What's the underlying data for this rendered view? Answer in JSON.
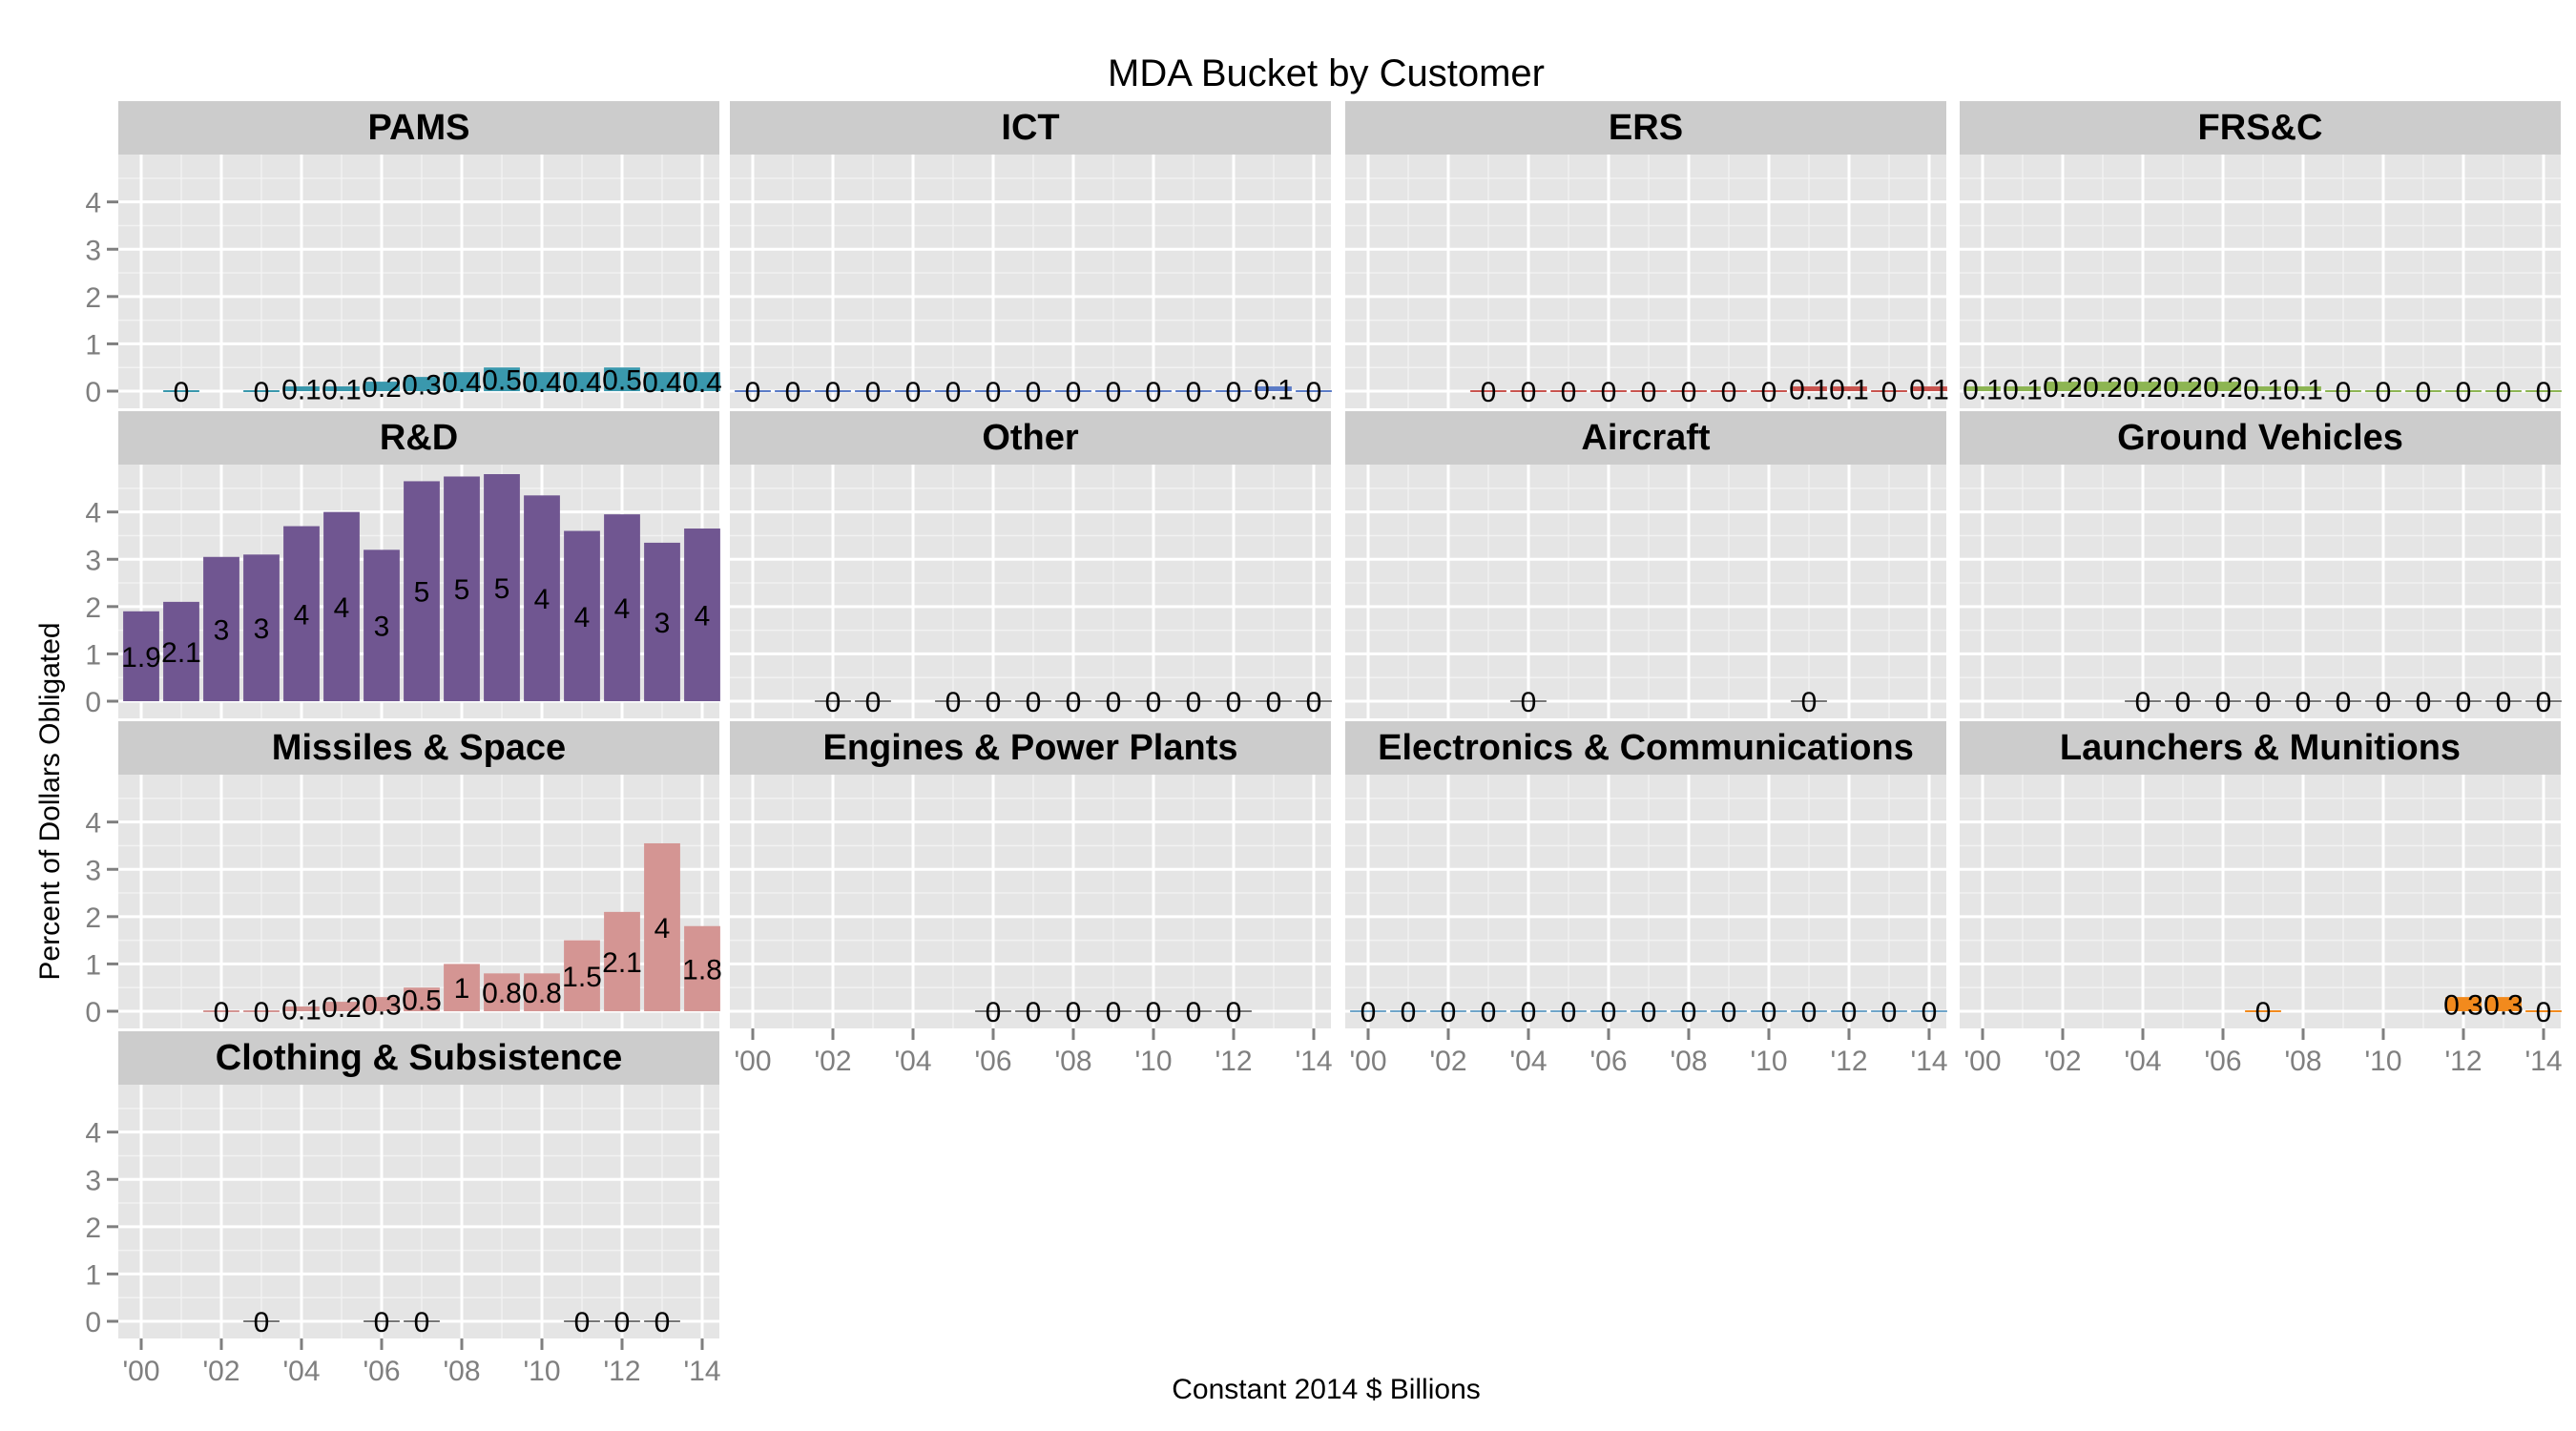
{
  "chart_data": {
    "type": "bar",
    "title": "MDA Bucket by Customer",
    "xlabel": "Constant 2014 $ Billions",
    "ylabel": "Percent of Dollars Obligated",
    "x": [
      "2000",
      "2001",
      "2002",
      "2003",
      "2004",
      "2005",
      "2006",
      "2007",
      "2008",
      "2009",
      "2010",
      "2011",
      "2012",
      "2013",
      "2014"
    ],
    "x_tick_labels": [
      "'00",
      "'02",
      "'04",
      "'06",
      "'08",
      "'10",
      "'12",
      "'14"
    ],
    "xlim": [
      2000,
      2014
    ],
    "ylim": [
      0,
      4.8
    ],
    "y_ticks": [
      0,
      1,
      2,
      3,
      4
    ],
    "grid": true,
    "facets": [
      {
        "name": "PAMS",
        "color": "#3a98ad",
        "values": [
          null,
          0,
          null,
          0,
          0.1,
          0.1,
          0.2,
          0.3,
          0.4,
          0.5,
          0.4,
          0.4,
          0.5,
          0.4,
          0.4
        ],
        "labels": [
          "",
          "0",
          "",
          "0",
          "0.1",
          "0.1",
          "0.2",
          "0.3",
          "0.4",
          "0.5",
          "0.4",
          "0.4",
          "0.5",
          "0.4",
          "0.4"
        ]
      },
      {
        "name": "ICT",
        "color": "#5b7bc6",
        "values": [
          0,
          0,
          0,
          0,
          0,
          0,
          0,
          0,
          0,
          0,
          0,
          0,
          0,
          0.1,
          0
        ],
        "labels": [
          "0",
          "0",
          "0",
          "0",
          "0",
          "0",
          "0",
          "0",
          "0",
          "0",
          "0",
          "0",
          "0",
          "0.1",
          "0"
        ]
      },
      {
        "name": "ERS",
        "color": "#c9544f",
        "values": [
          null,
          null,
          null,
          0,
          0,
          0,
          0,
          0,
          0,
          0,
          0,
          0.1,
          0.1,
          0,
          0.1
        ],
        "labels": [
          "",
          "",
          "",
          "0",
          "0",
          "0",
          "0",
          "0",
          "0",
          "0",
          "0",
          "0.1",
          "0.1",
          "0",
          "0.1"
        ]
      },
      {
        "name": "FRS&C",
        "color": "#8db553",
        "values": [
          0.1,
          0.1,
          0.2,
          0.2,
          0.2,
          0.2,
          0.2,
          0.1,
          0.1,
          0,
          0,
          0,
          0,
          0,
          0
        ],
        "labels": [
          "0.1",
          "0.1",
          "0.2",
          "0.2",
          "0.2",
          "0.2",
          "0.2",
          "0.1",
          "0.1",
          "0",
          "0",
          "0",
          "0",
          "0",
          "0"
        ]
      },
      {
        "name": "R&D",
        "color": "#705691",
        "values": [
          1.9,
          2.1,
          3.05,
          3.1,
          3.7,
          4.0,
          3.2,
          4.65,
          4.75,
          4.8,
          4.35,
          3.6,
          3.95,
          3.35,
          3.65
        ],
        "labels": [
          "1.9",
          "2.1",
          "3",
          "3",
          "4",
          "4",
          "3",
          "5",
          "5",
          "5",
          "4",
          "4",
          "4",
          "3",
          "4"
        ]
      },
      {
        "name": "Other",
        "color": "#777777",
        "values": [
          null,
          null,
          0,
          0,
          null,
          0,
          0,
          0,
          0,
          0,
          0,
          0,
          0,
          0,
          0
        ],
        "labels": [
          "",
          "",
          "0",
          "0",
          "",
          "0",
          "0",
          "0",
          "0",
          "0",
          "0",
          "0",
          "0",
          "0",
          "0"
        ]
      },
      {
        "name": "Aircraft",
        "color": "#777777",
        "values": [
          null,
          null,
          null,
          null,
          0,
          null,
          null,
          null,
          null,
          null,
          null,
          0,
          null,
          null,
          null
        ],
        "labels": [
          "",
          "",
          "",
          "",
          "0",
          "",
          "",
          "",
          "",
          "",
          "",
          "0",
          "",
          "",
          ""
        ]
      },
      {
        "name": "Ground Vehicles",
        "color": "#777777",
        "values": [
          null,
          null,
          null,
          null,
          0,
          0,
          0,
          0,
          0,
          0,
          0,
          0,
          0,
          0,
          0
        ],
        "labels": [
          "",
          "",
          "",
          "",
          "0",
          "0",
          "0",
          "0",
          "0",
          "0",
          "0",
          "0",
          "0",
          "0",
          "0"
        ]
      },
      {
        "name": "Missiles & Space",
        "color": "#d49593",
        "values": [
          null,
          null,
          0,
          0,
          0.1,
          0.2,
          0.3,
          0.5,
          1.0,
          0.8,
          0.8,
          1.5,
          2.1,
          3.55,
          1.8
        ],
        "labels": [
          "",
          "",
          "0",
          "0",
          "0.1",
          "0.2",
          "0.3",
          "0.5",
          "1",
          "0.8",
          "0.8",
          "1.5",
          "2.1",
          "4",
          "1.8"
        ]
      },
      {
        "name": "Engines & Power Plants",
        "color": "#777777",
        "values": [
          null,
          null,
          null,
          null,
          null,
          null,
          0,
          0,
          0,
          0,
          0,
          0,
          0,
          null,
          null
        ],
        "labels": [
          "",
          "",
          "",
          "",
          "",
          "",
          "0",
          "0",
          "0",
          "0",
          "0",
          "0",
          "0",
          "",
          ""
        ]
      },
      {
        "name": "Electronics & Communications",
        "color": "#6fa5c9",
        "values": [
          0,
          0,
          0,
          0,
          0,
          0,
          0,
          0,
          0,
          0,
          0,
          0,
          0,
          0,
          0
        ],
        "labels": [
          "0",
          "0",
          "0",
          "0",
          "0",
          "0",
          "0",
          "0",
          "0",
          "0",
          "0",
          "0",
          "0",
          "0",
          "0"
        ]
      },
      {
        "name": "Launchers & Munitions",
        "color": "#f28a1d",
        "values": [
          null,
          null,
          null,
          null,
          null,
          null,
          null,
          0,
          null,
          null,
          null,
          null,
          0.3,
          0.3,
          0
        ],
        "labels": [
          "",
          "",
          "",
          "",
          "",
          "",
          "",
          "0",
          "",
          "",
          "",
          "",
          "0.3",
          "0.3",
          "0"
        ]
      },
      {
        "name": "Clothing & Subsistence",
        "color": "#777777",
        "values": [
          null,
          null,
          null,
          0,
          null,
          null,
          0,
          0,
          null,
          null,
          null,
          0,
          0,
          0,
          null
        ],
        "labels": [
          "",
          "",
          "",
          "0",
          "",
          "",
          "0",
          "0",
          "",
          "",
          "",
          "0",
          "0",
          "0",
          ""
        ]
      }
    ]
  }
}
